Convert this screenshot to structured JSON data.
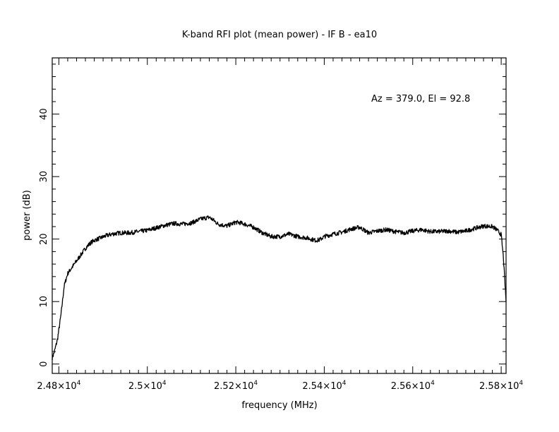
{
  "chart_data": {
    "type": "line",
    "title": "K-band RFI plot (mean power) - IF B - ea10",
    "xlabel": "frequency (MHz)",
    "ylabel": "power (dB)",
    "annotation": "Az = 379.0, El = 92.8",
    "xlim": [
      24785,
      25811
    ],
    "ylim": [
      -1.5,
      49
    ],
    "grid": false,
    "x_tick_values": [
      24800,
      25000,
      25200,
      25400,
      25600,
      25800
    ],
    "x_tick_labels": [
      {
        "mantissa": "2.48",
        "times": "×10",
        "exp": "4"
      },
      {
        "mantissa": "2.5",
        "times": "×10",
        "exp": "4"
      },
      {
        "mantissa": "2.52",
        "times": "×10",
        "exp": "4"
      },
      {
        "mantissa": "2.54",
        "times": "×10",
        "exp": "4"
      },
      {
        "mantissa": "2.56",
        "times": "×10",
        "exp": "4"
      },
      {
        "mantissa": "2.58",
        "times": "×10",
        "exp": "4"
      }
    ],
    "y_ticks": [
      0,
      10,
      20,
      30,
      40
    ],
    "y_tick_labels": [
      "0",
      "10",
      "20",
      "30",
      "40"
    ],
    "series": [
      {
        "x": [
          24785,
          24790,
          24797,
          24805,
          24812,
          24820,
          24830,
          24840,
          24850,
          24860,
          24870,
          24880,
          24895,
          24905,
          24920,
          24940,
          24960,
          24980,
          25000,
          25020,
          25040,
          25060,
          25080,
          25100,
          25120,
          25140,
          25150,
          25160,
          25180,
          25200,
          25210,
          25220,
          25240,
          25260,
          25280,
          25300,
          25320,
          25340,
          25360,
          25380,
          25390,
          25400,
          25420,
          25440,
          25460,
          25480,
          25500,
          25520,
          25540,
          25560,
          25580,
          25600,
          25620,
          25640,
          25660,
          25680,
          25700,
          25720,
          25740,
          25760,
          25780,
          25790,
          25800,
          25805,
          25811
        ],
        "y": [
          1.0,
          2.0,
          4.0,
          8.0,
          12.5,
          14.5,
          15.5,
          16.5,
          17.5,
          18.5,
          19.3,
          19.8,
          20.2,
          20.5,
          20.8,
          21.0,
          21.0,
          21.2,
          21.4,
          21.8,
          22.2,
          22.5,
          22.4,
          22.6,
          23.2,
          23.5,
          23.0,
          22.4,
          22.1,
          22.7,
          22.6,
          22.4,
          21.9,
          21.0,
          20.4,
          20.4,
          20.8,
          20.4,
          20.2,
          19.8,
          19.9,
          20.4,
          20.8,
          21.1,
          21.6,
          21.9,
          21.0,
          21.3,
          21.5,
          21.2,
          21.0,
          21.3,
          21.5,
          21.2,
          21.2,
          21.3,
          21.1,
          21.3,
          21.7,
          22.1,
          22.0,
          21.5,
          20.7,
          17.0,
          10.0
        ]
      }
    ]
  }
}
